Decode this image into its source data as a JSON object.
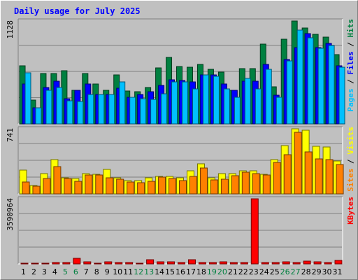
{
  "chart_data": {
    "type": "bar",
    "title": "Daily usage for July 2025",
    "categories": [
      "1",
      "2",
      "3",
      "4",
      "5",
      "6",
      "7",
      "8",
      "9",
      "10",
      "11",
      "12",
      "13",
      "14",
      "15",
      "16",
      "17",
      "18",
      "19",
      "20",
      "21",
      "22",
      "23",
      "24",
      "25",
      "26",
      "27",
      "28",
      "29",
      "30",
      "31"
    ],
    "weekend_days": [
      "5",
      "6",
      "12",
      "13",
      "19",
      "20",
      "26",
      "27"
    ],
    "panels": [
      {
        "id": "hits-files-pages",
        "max_label": "1128",
        "ymax": 1128,
        "legend": [
          "Pages",
          "Files",
          "Hits"
        ],
        "series": [
          {
            "name": "Hits",
            "color": "#008040",
            "values": [
              640,
              258,
              555,
              555,
              580,
              372,
              555,
              434,
              372,
              540,
              362,
              354,
              400,
              614,
              730,
              632,
              618,
              650,
              600,
              564,
              372,
              610,
              610,
              874,
              404,
              926,
              1128,
              1048,
              980,
              952,
              756
            ]
          },
          {
            "name": "Files",
            "color": "#0000ff",
            "values": [
              440,
              175,
              400,
              465,
              280,
              372,
              435,
              320,
              320,
              388,
              290,
              324,
              354,
              420,
              484,
              472,
              460,
              538,
              536,
              440,
              372,
              466,
              466,
              656,
              318,
              708,
              838,
              988,
              834,
              882,
              634
            ]
          },
          {
            "name": "Pages",
            "color": "#00c0ff",
            "values": [
              560,
              175,
              370,
              400,
              250,
              244,
              320,
              320,
              320,
              460,
              290,
              280,
              270,
              330,
              460,
              460,
              380,
              540,
              520,
              380,
              290,
              500,
              380,
              600,
              290,
              690,
              1030,
              940,
              830,
              860,
              620
            ]
          }
        ]
      },
      {
        "id": "visits-sites",
        "max_label": "741",
        "ymax": 741,
        "legend": [
          "Sites",
          "Visits"
        ],
        "series": [
          {
            "name": "Visits",
            "color": "#ffff00",
            "values": [
              270,
              95,
              230,
              390,
              180,
              176,
              230,
              222,
              280,
              180,
              150,
              150,
              180,
              200,
              198,
              186,
              266,
              344,
              180,
              230,
              232,
              264,
              262,
              222,
              390,
              552,
              741,
              722,
              544,
              532,
              378
            ]
          },
          {
            "name": "Sites",
            "color": "#ff8000",
            "values": [
              136,
              85,
              176,
              312,
              176,
              144,
              212,
              212,
              180,
              166,
              134,
              126,
              142,
              194,
              176,
              152,
              200,
              298,
              160,
              168,
              210,
              248,
              234,
              212,
              360,
              448,
              700,
              478,
              398,
              390,
              336
            ]
          }
        ]
      },
      {
        "id": "kbytes",
        "max_label": "3590964",
        "ymax": 3590964,
        "legend": [
          "KBytes"
        ],
        "series": [
          {
            "name": "KBytes",
            "color": "#ff0000",
            "values": [
              20000,
              20000,
              20000,
              90000,
              90000,
              320000,
              120000,
              20000,
              100000,
              90000,
              60000,
              40000,
              230000,
              120000,
              120000,
              60000,
              230000,
              60000,
              90000,
              100000,
              80000,
              80000,
              3590964,
              60000,
              90000,
              100000,
              60000,
              170000,
              120000,
              90000,
              200000
            ]
          }
        ]
      }
    ]
  }
}
